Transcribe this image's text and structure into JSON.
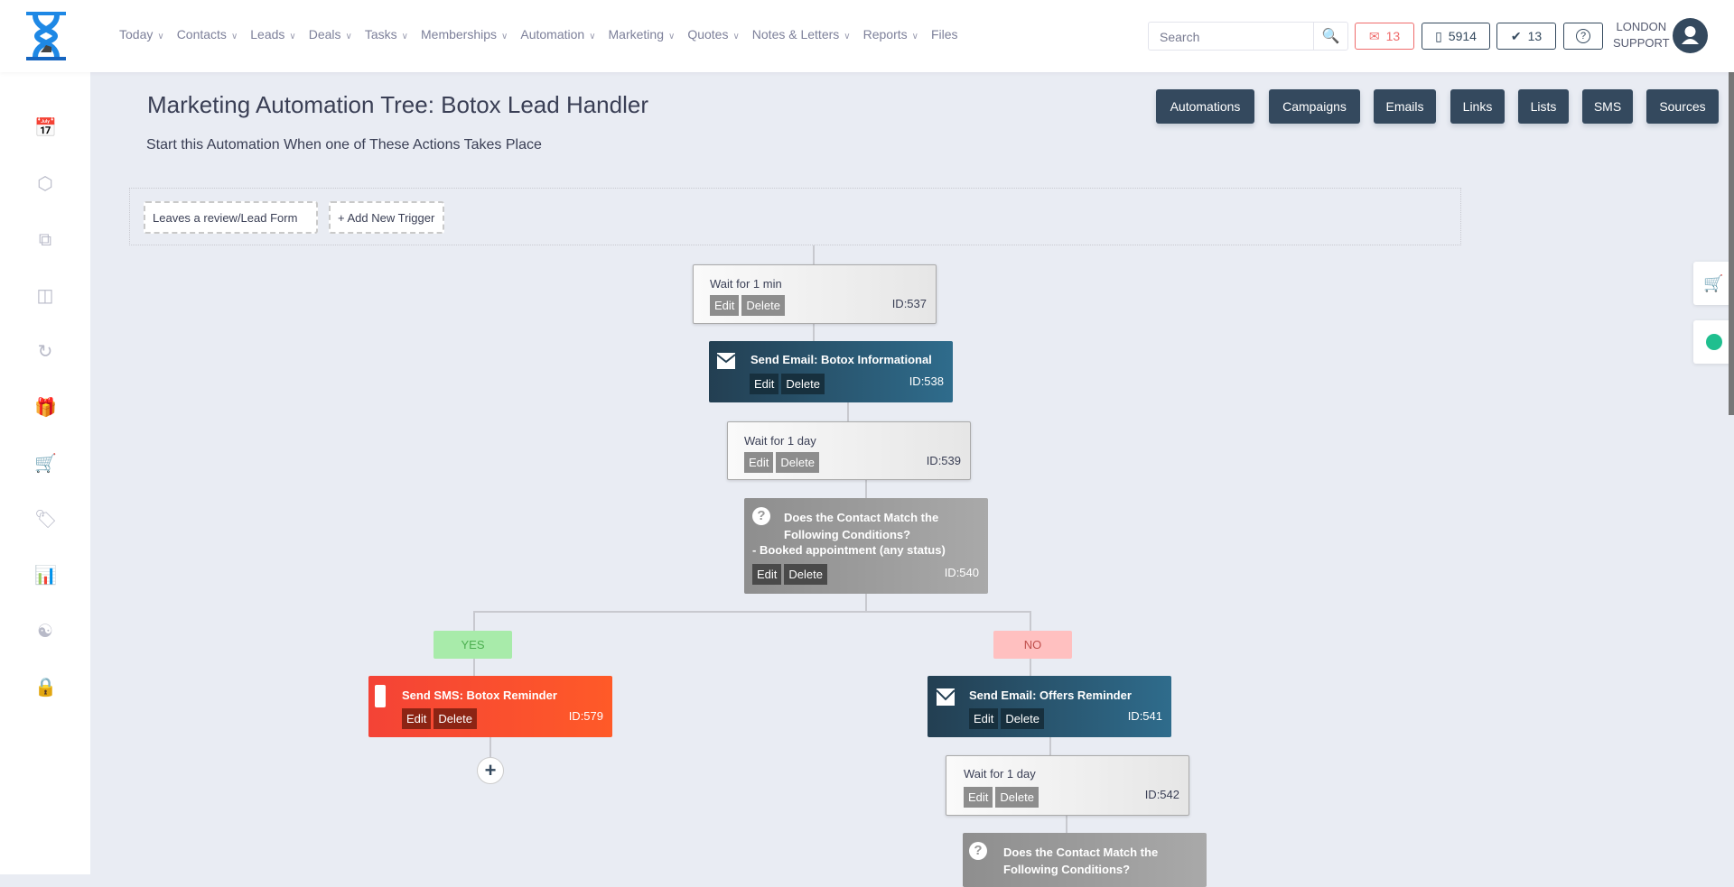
{
  "header": {
    "nav": [
      "Today",
      "Contacts",
      "Leads",
      "Deals",
      "Tasks",
      "Memberships",
      "Automation",
      "Marketing",
      "Quotes",
      "Notes & Letters",
      "Reports",
      "Files"
    ],
    "nav_has_chevron": [
      true,
      true,
      true,
      true,
      true,
      true,
      true,
      true,
      true,
      true,
      true,
      false
    ],
    "search_placeholder": "Search",
    "mail_count": "13",
    "phone_count": "5914",
    "tasks_count": "13",
    "help": "?",
    "user_line1": "LONDON",
    "user_line2": "SUPPORT"
  },
  "sidebar_icons": [
    "calendar-icon",
    "box-icon",
    "copy-icon",
    "basket-icon",
    "history-icon",
    "gift-icon",
    "cart-icon",
    "tag-icon",
    "report-icon",
    "user-sync-icon",
    "lock-icon"
  ],
  "page": {
    "title": "Marketing Automation Tree: Botox Lead Handler",
    "subtitle": "Start this Automation When one of These Actions Takes Place",
    "toolbar": [
      "Automations",
      "Campaigns",
      "Emails",
      "Links",
      "Lists",
      "SMS",
      "Sources"
    ]
  },
  "triggers": {
    "items": [
      "Leaves a review/Lead Form"
    ],
    "add": "+ Add New Trigger"
  },
  "actions": {
    "edit": "Edit",
    "delete": "Delete"
  },
  "nodes": [
    {
      "title": "Wait for 1 min",
      "id": "ID:537"
    },
    {
      "title": "Send Email: Botox Informational",
      "id": "ID:538"
    },
    {
      "title": "Wait for 1 day",
      "id": "ID:539"
    },
    {
      "title": "Does the Contact Match the Following Conditions?",
      "detail": "- Booked appointment (any status)",
      "id": "ID:540"
    },
    {
      "title": "Send SMS: Botox Reminder",
      "id": "ID:579"
    },
    {
      "title": "Send Email: Offers Reminder",
      "id": "ID:541"
    },
    {
      "title": "Wait for 1 day",
      "id": "ID:542"
    },
    {
      "title": "Does the Contact Match the Following Conditions?"
    }
  ],
  "branches": {
    "yes": "YES",
    "no": "NO",
    "yes_color": "#a8ebaa",
    "no_color": "#ffc0c0"
  },
  "colors": {
    "primary": "#34495e",
    "mail_alert": "#ef6b6b"
  }
}
